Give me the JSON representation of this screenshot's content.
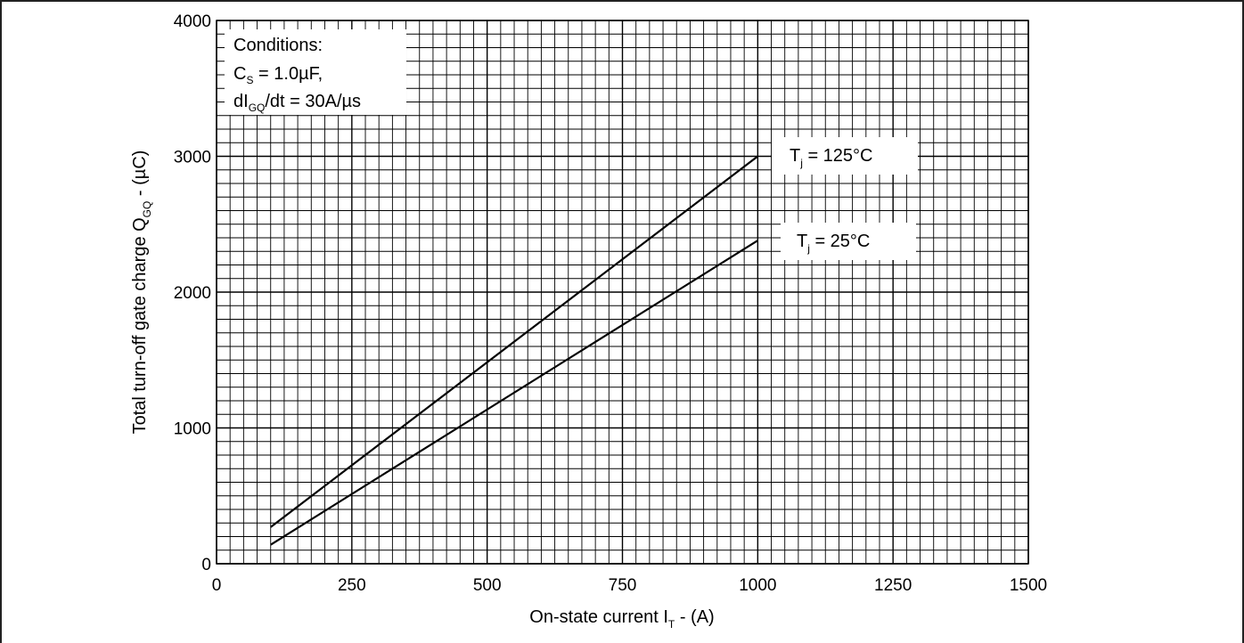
{
  "chart_data": {
    "type": "line",
    "xlabel": "On-state current I",
    "xlabel_sub": "T",
    "xlabel_suffix": " - (A)",
    "ylabel": "Total turn-off gate charge Q",
    "ylabel_sub": "GQ",
    "ylabel_suffix": " - (µC)",
    "xlim": [
      0,
      1500
    ],
    "ylim": [
      0,
      4000
    ],
    "x_ticks": [
      0,
      250,
      500,
      750,
      1000,
      1250,
      1500
    ],
    "y_ticks": [
      0,
      1000,
      2000,
      3000,
      4000
    ],
    "grid": true,
    "minor_x_step": 25,
    "minor_y_step": 100,
    "series": [
      {
        "name": "Tj = 125°C",
        "label_main": "T",
        "label_sub": "j",
        "label_rest": " = 125°C",
        "x": [
          100,
          1000
        ],
        "y": [
          270,
          3000
        ]
      },
      {
        "name": "Tj = 25°C",
        "label_main": "T",
        "label_sub": "j",
        "label_rest": " = 25°C",
        "x": [
          100,
          1000
        ],
        "y": [
          140,
          2380
        ]
      }
    ],
    "conditions": {
      "title": "Conditions:",
      "line1_main": "C",
      "line1_sub": "S",
      "line1_rest": " = 1.0µF,",
      "line2_main": "dI",
      "line2_sub": "GQ",
      "line2_rest": "/dt = 30A/µs"
    }
  }
}
